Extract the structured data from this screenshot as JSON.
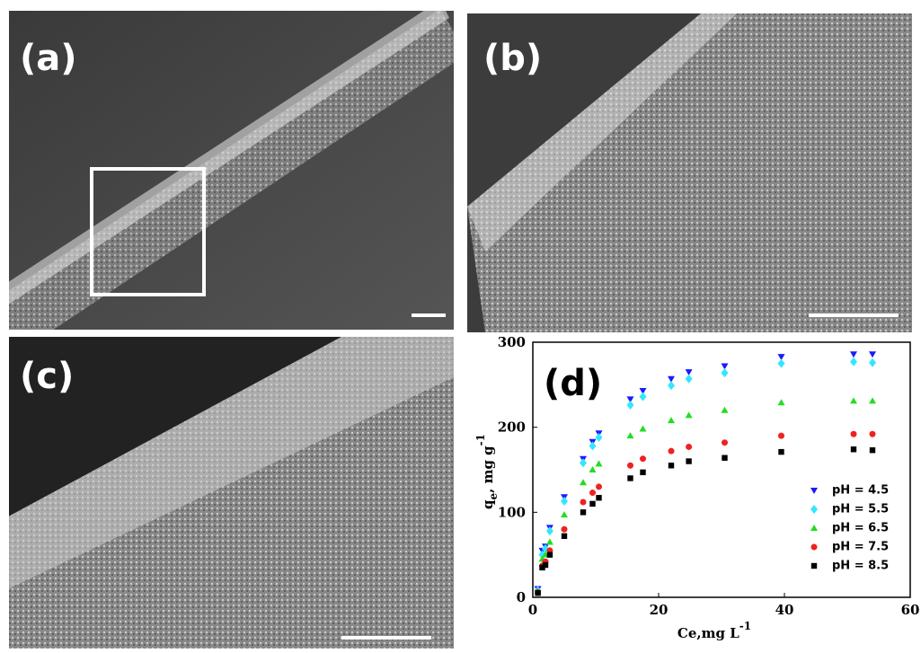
{
  "panels": [
    "(a)",
    "(b)",
    "(c)"
  ],
  "chart_data": {
    "type": "scatter",
    "panel_label": "(d)",
    "xlabel": [
      "Ce,mg L",
      "-1"
    ],
    "ylabel": [
      "q",
      "e",
      ", mg g",
      "-1"
    ],
    "x": [
      0.8,
      1.5,
      2.0,
      2.7,
      5.0,
      8.0,
      9.5,
      10.5,
      15.5,
      17.5,
      22.0,
      24.8,
      30.5,
      39.5,
      51.0,
      54.0
    ],
    "series": [
      {
        "name": "pH = 4.5",
        "color": "#1a1aff",
        "marker": "triangle-down",
        "values": [
          10,
          55,
          60,
          82,
          118,
          163,
          183,
          193,
          233,
          243,
          257,
          265,
          272,
          283,
          286,
          286
        ]
      },
      {
        "name": "pH = 5.5",
        "color": "#33e6ff",
        "marker": "diamond",
        "values": [
          8,
          50,
          57,
          78,
          113,
          158,
          178,
          188,
          226,
          236,
          249,
          257,
          264,
          275,
          277,
          276
        ]
      },
      {
        "name": "pH = 6.5",
        "color": "#22dd22",
        "marker": "triangle-up",
        "values": [
          7,
          45,
          50,
          65,
          97,
          135,
          150,
          157,
          190,
          198,
          208,
          214,
          220,
          229,
          231,
          231
        ]
      },
      {
        "name": "pH = 7.5",
        "color": "#ee2222",
        "marker": "circle",
        "values": [
          6,
          37,
          42,
          55,
          80,
          112,
          123,
          130,
          155,
          163,
          172,
          177,
          182,
          190,
          192,
          192
        ]
      },
      {
        "name": "pH = 8.5",
        "color": "#000000",
        "marker": "square",
        "values": [
          5,
          35,
          38,
          50,
          72,
          100,
          110,
          117,
          140,
          147,
          155,
          160,
          164,
          171,
          174,
          173
        ]
      }
    ],
    "xlim": [
      0,
      60
    ],
    "xticks": [
      0,
      20,
      40,
      60
    ],
    "ylim": [
      0,
      300
    ],
    "yticks": [
      0,
      100,
      200,
      300
    ],
    "legend": "lower right"
  }
}
